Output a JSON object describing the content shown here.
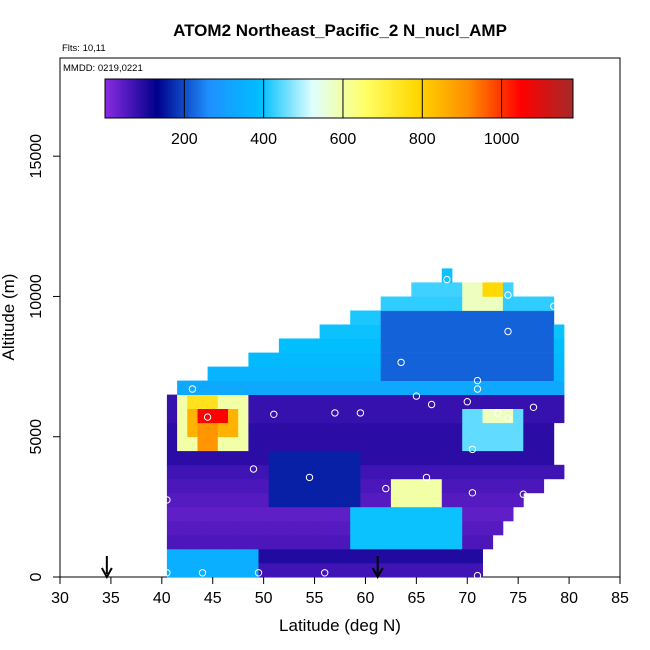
{
  "chart_data": {
    "type": "heatmap",
    "title": "ATOM2 Northeast_Pacific_2 N_nucl_AMP",
    "flights_label": "Flts: 10,11",
    "date_label": "MMDD: 0219,0221",
    "xlabel": "Latitude (deg N)",
    "ylabel": "Altitude (m)",
    "xlim": [
      30,
      85
    ],
    "ylim": [
      0,
      18500
    ],
    "x_ticks": [
      "30",
      "35",
      "40",
      "45",
      "50",
      "55",
      "60",
      "65",
      "70",
      "75",
      "80",
      "85"
    ],
    "y_ticks": [
      "0",
      "5000",
      "10000",
      "15000"
    ],
    "y_tick_values": [
      0,
      5000,
      10000,
      15000
    ],
    "colorbar": {
      "range": [
        0,
        1180
      ],
      "ticks": [
        "200",
        "400",
        "600",
        "800",
        "1000"
      ],
      "tick_values": [
        200,
        400,
        600,
        800,
        1000
      ],
      "colors": [
        "#8a2be2",
        "#00008b",
        "#1e90ff",
        "#00bfff",
        "#e0ffff",
        "#ffff66",
        "#ffd700",
        "#ff8c00",
        "#ff0000",
        "#a52a2a"
      ]
    },
    "cell_size": {
      "lat": 1.0,
      "alt_m": 500
    },
    "regions": [
      {
        "alt": [
          0,
          500
        ],
        "lat": [
          40.5,
          72
        ],
        "value": 70
      },
      {
        "alt": [
          500,
          1000
        ],
        "lat": [
          40.5,
          72
        ],
        "value": 100
      },
      {
        "alt": [
          1000,
          1500
        ],
        "lat": [
          40.5,
          73
        ],
        "value": 60
      },
      {
        "alt": [
          1500,
          2000
        ],
        "lat": [
          40.5,
          74
        ],
        "value": 50
      },
      {
        "alt": [
          2000,
          2500
        ],
        "lat": [
          40.5,
          75
        ],
        "value": 40
      },
      {
        "alt": [
          2500,
          3000
        ],
        "lat": [
          40.5,
          76
        ],
        "value": 50
      },
      {
        "alt": [
          3000,
          3500
        ],
        "lat": [
          40.5,
          78
        ],
        "value": 60
      },
      {
        "alt": [
          3500,
          4000
        ],
        "lat": [
          40.5,
          80
        ],
        "value": 70
      },
      {
        "alt": [
          4000,
          5500
        ],
        "lat": [
          41,
          79
        ],
        "value": 90
      },
      {
        "alt": [
          5500,
          6500
        ],
        "lat": [
          41,
          80
        ],
        "value": 80
      },
      {
        "alt": [
          6500,
          7000
        ],
        "lat": [
          42,
          80
        ],
        "value": 330
      },
      {
        "alt": [
          7000,
          7500
        ],
        "lat": [
          45,
          80
        ],
        "value": 360
      },
      {
        "alt": [
          7500,
          8000
        ],
        "lat": [
          49,
          80
        ],
        "value": 380
      },
      {
        "alt": [
          8000,
          8500
        ],
        "lat": [
          52,
          80
        ],
        "value": 390
      },
      {
        "alt": [
          8500,
          9000
        ],
        "lat": [
          56,
          80
        ],
        "value": 400
      },
      {
        "alt": [
          9000,
          9500
        ],
        "lat": [
          59,
          79
        ],
        "value": 410
      },
      {
        "alt": [
          9500,
          10000
        ],
        "lat": [
          62,
          79
        ],
        "value": 420
      },
      {
        "alt": [
          10000,
          10500
        ],
        "lat": [
          65,
          75
        ],
        "value": 430
      },
      {
        "alt": [
          10500,
          11000
        ],
        "lat": [
          68,
          69
        ],
        "value": 400
      }
    ],
    "features": [
      {
        "alt": [
          4500,
          6500
        ],
        "lat": [
          42,
          49
        ],
        "value": 600
      },
      {
        "alt": [
          5000,
          6000
        ],
        "lat": [
          43,
          48
        ],
        "value": 850
      },
      {
        "alt": [
          5500,
          6000
        ],
        "lat": [
          44,
          47
        ],
        "value": 1050
      },
      {
        "alt": [
          6000,
          6500
        ],
        "lat": [
          43,
          46
        ],
        "value": 750
      },
      {
        "alt": [
          4500,
          5500
        ],
        "lat": [
          43.5,
          45.5
        ],
        "value": 900
      },
      {
        "alt": [
          7000,
          9500
        ],
        "lat": [
          62,
          79
        ],
        "value": 220
      },
      {
        "alt": [
          4500,
          6000
        ],
        "lat": [
          70,
          76
        ],
        "value": 450
      },
      {
        "alt": [
          5500,
          6000
        ],
        "lat": [
          72,
          75
        ],
        "value": 580
      },
      {
        "alt": [
          9500,
          10500
        ],
        "lat": [
          70,
          74
        ],
        "value": 580
      },
      {
        "alt": [
          10000,
          10500
        ],
        "lat": [
          72,
          74
        ],
        "value": 780
      },
      {
        "alt": [
          2500,
          3500
        ],
        "lat": [
          63,
          68
        ],
        "value": 600
      },
      {
        "alt": [
          1000,
          2500
        ],
        "lat": [
          59,
          70
        ],
        "value": 400
      },
      {
        "alt": [
          0,
          1000
        ],
        "lat": [
          41,
          50
        ],
        "value": 350
      },
      {
        "alt": [
          2500,
          4500
        ],
        "lat": [
          51,
          60
        ],
        "value": 160
      }
    ],
    "sample_points": [
      [
        40.5,
        150
      ],
      [
        44,
        150
      ],
      [
        49.5,
        150
      ],
      [
        56,
        150
      ],
      [
        71,
        50
      ],
      [
        40.5,
        2750
      ],
      [
        54.5,
        3550
      ],
      [
        59.5,
        5850
      ],
      [
        43,
        6700
      ],
      [
        44.5,
        5700
      ],
      [
        49,
        3850
      ],
      [
        51,
        5800
      ],
      [
        57,
        5850
      ],
      [
        63.5,
        7650
      ],
      [
        65,
        6450
      ],
      [
        66.5,
        6150
      ],
      [
        70,
        6250
      ],
      [
        71,
        7000
      ],
      [
        71,
        6700
      ],
      [
        73,
        5850
      ],
      [
        74,
        5650
      ],
      [
        76.5,
        6050
      ],
      [
        80,
        7000
      ],
      [
        70.5,
        4550
      ],
      [
        66,
        3550
      ],
      [
        70.5,
        3000
      ],
      [
        75.5,
        2950
      ],
      [
        80,
        3700
      ],
      [
        74,
        8750
      ],
      [
        78.5,
        9650
      ],
      [
        74,
        10050
      ],
      [
        68,
        10600
      ],
      [
        62,
        3150
      ]
    ],
    "markers": [
      {
        "type": "arrow-down",
        "lat": 34.6
      },
      {
        "type": "arrow-down",
        "lat": 61.2
      }
    ]
  }
}
